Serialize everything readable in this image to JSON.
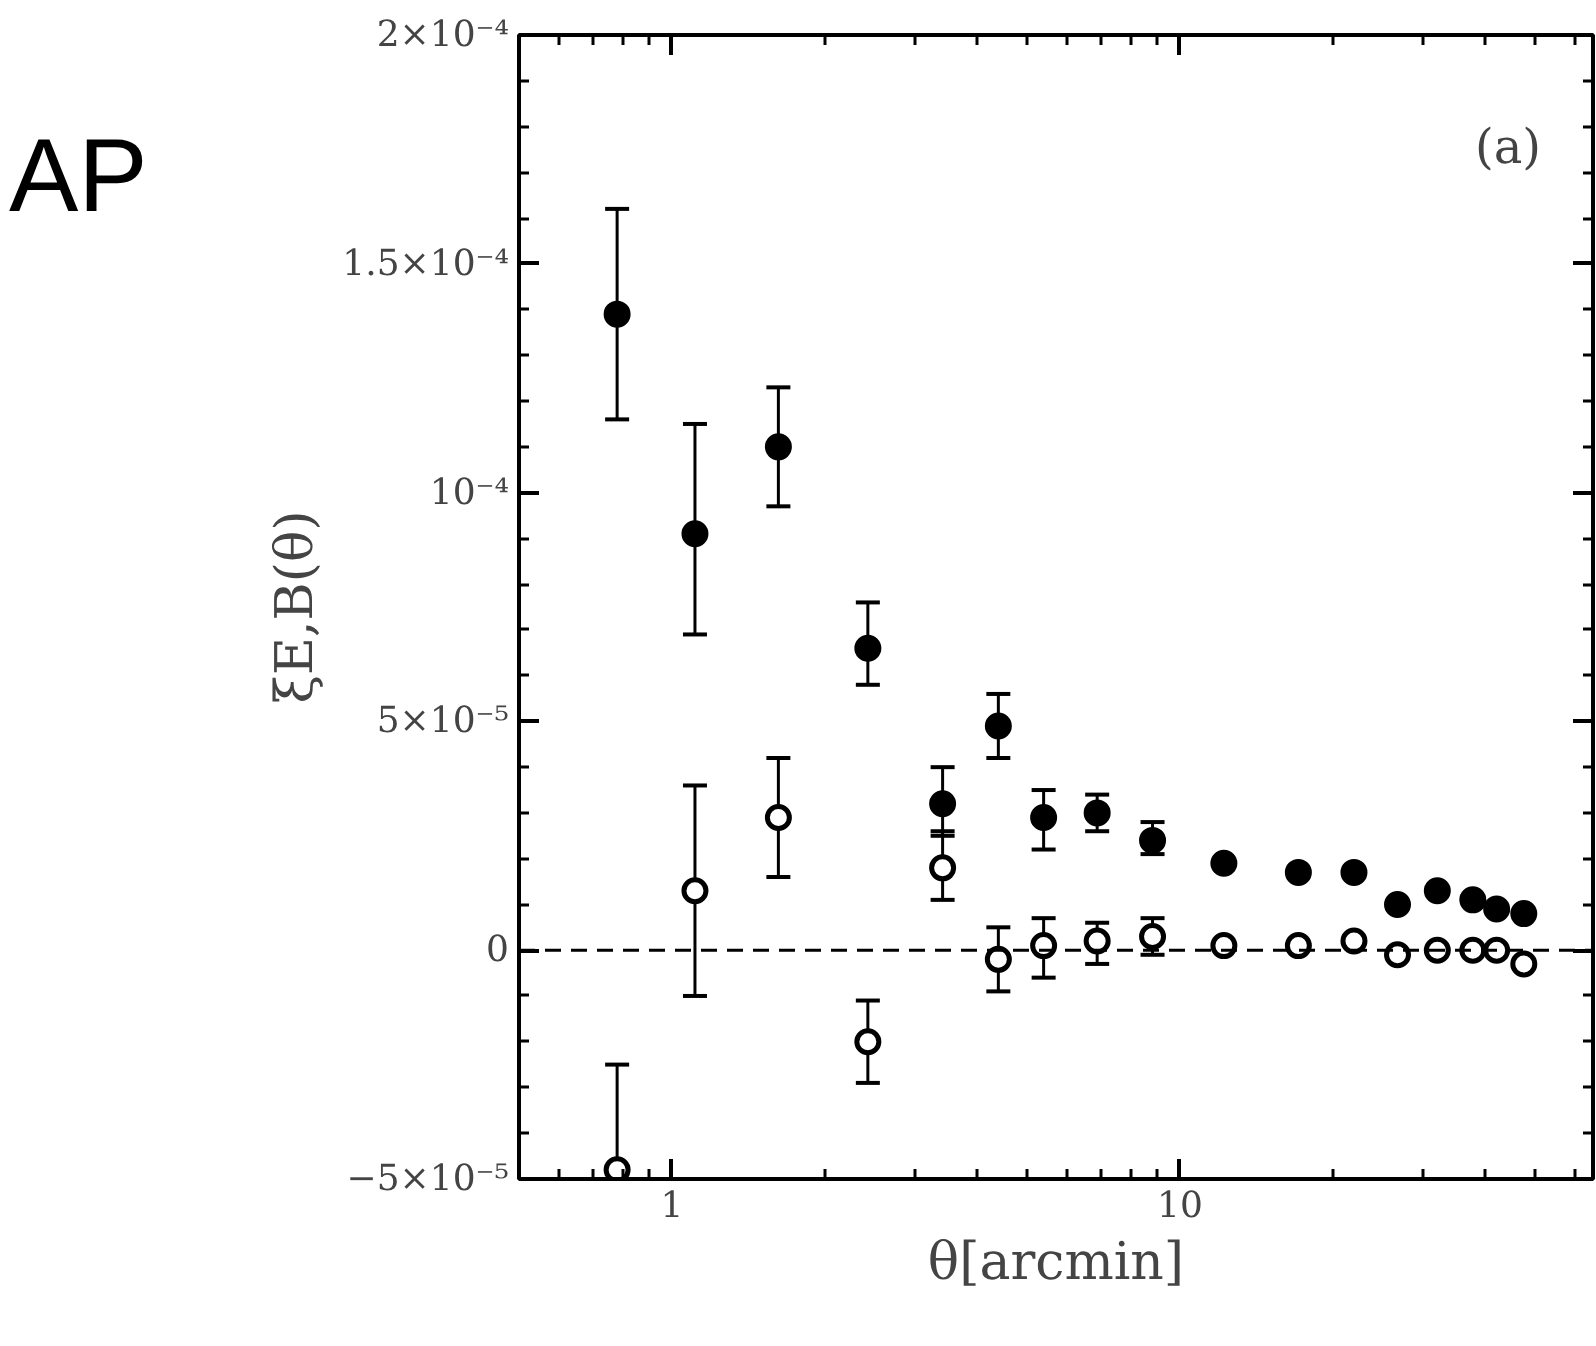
{
  "chart_data": {
    "type": "scatter",
    "xlabel": "θ[arcmin]",
    "ylabel": "ξE,B(θ)",
    "annotations": [
      "(a)",
      "AP"
    ],
    "log": "x",
    "xlim": [
      0.5,
      65
    ],
    "xticks": [
      1,
      10
    ],
    "ylim": [
      -5e-05,
      0.0002
    ],
    "yticks": [
      {
        "value": -5e-05,
        "label": "−5×10⁻⁵"
      },
      {
        "value": 0,
        "label": "0"
      },
      {
        "value": 5e-05,
        "label": "5×10⁻⁵"
      },
      {
        "value": 0.0001,
        "label": "10⁻⁴"
      },
      {
        "value": 0.00015,
        "label": "1.5×10⁻⁴"
      },
      {
        "value": 0.0002,
        "label": "2×10⁻⁴"
      }
    ],
    "grid": false,
    "marker": "circle",
    "ref_lines": [
      {
        "axis": "y",
        "value": 0,
        "line_style": "dashed",
        "color": "#000000"
      }
    ],
    "series": [
      {
        "color": "#000000",
        "x": [
          0.78,
          1.11,
          1.62,
          2.43,
          3.41,
          4.39,
          5.39,
          6.87,
          8.83,
          12.2,
          17.1,
          22.0,
          26.8,
          32.1,
          37.7,
          42.0,
          47.5
        ],
        "values": [
          0.000139,
          9.1e-05,
          0.00011,
          6.6e-05,
          3.2e-05,
          4.9e-05,
          2.9e-05,
          3e-05,
          2.4e-05,
          1.9e-05,
          1.7e-05,
          1.7e-05,
          1e-05,
          1.3e-05,
          1.1e-05,
          9e-06,
          8e-06
        ],
        "errors": [
          [
            0.000116,
            0.000162
          ],
          [
            6.9e-05,
            0.000115
          ],
          [
            9.7e-05,
            0.000123
          ],
          [
            5.8e-05,
            7.6e-05
          ],
          [
            2.5e-05,
            4e-05
          ],
          [
            4.2e-05,
            5.6e-05
          ],
          [
            2.2e-05,
            3.5e-05
          ],
          [
            2.6e-05,
            3.4e-05
          ],
          [
            2.1e-05,
            2.8e-05
          ],
          null,
          null,
          null,
          null,
          null,
          null,
          null,
          null
        ]
      },
      {
        "color": "#ffffff",
        "x": [
          0.78,
          1.11,
          1.62,
          2.43,
          3.41,
          4.39,
          5.39,
          6.87,
          8.83,
          12.2,
          17.1,
          22.0,
          26.8,
          32.1,
          37.7,
          42.0,
          47.5
        ],
        "values": [
          -4.8e-05,
          1.3e-05,
          2.9e-05,
          -2e-05,
          1.8e-05,
          -2e-06,
          1e-06,
          2e-06,
          3e-06,
          1e-06,
          1e-06,
          2e-06,
          -1e-06,
          0.0,
          0.0,
          0.0,
          -3e-06
        ],
        "errors": [
          [
            -5e-05,
            -2.5e-05
          ],
          [
            -1e-05,
            3.6e-05
          ],
          [
            1.6e-05,
            4.2e-05
          ],
          [
            -2.9e-05,
            -1.1e-05
          ],
          [
            1.1e-05,
            2.6e-05
          ],
          [
            -9e-06,
            5e-06
          ],
          [
            -6e-06,
            7e-06
          ],
          [
            -3e-06,
            6e-06
          ],
          [
            -1e-06,
            7e-06
          ],
          null,
          null,
          null,
          null,
          null,
          null,
          null,
          null
        ]
      }
    ]
  }
}
